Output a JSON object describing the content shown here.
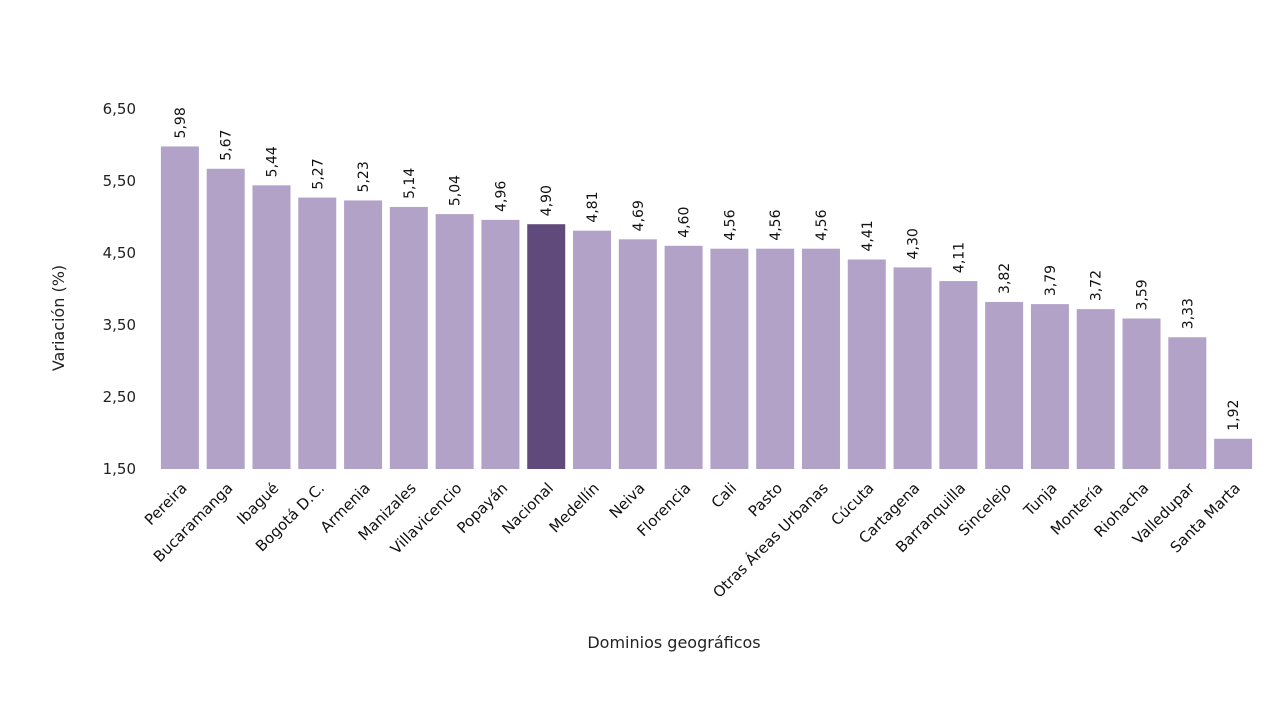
{
  "chart_data": {
    "type": "bar",
    "title": "",
    "xlabel": "Dominios geográficos",
    "ylabel": "Variación (%)",
    "ylim": [
      1.5,
      6.5
    ],
    "yticks": [
      "1,50",
      "2,50",
      "3,50",
      "4,50",
      "5,50",
      "6,50"
    ],
    "ytick_values": [
      1.5,
      2.5,
      3.5,
      4.5,
      5.5,
      6.5
    ],
    "grid": false,
    "categories": [
      "Pereira",
      "Bucaramanga",
      "Ibagué",
      "Bogotá D.C.",
      "Armenia",
      "Manizales",
      "Villavicencio",
      "Popayán",
      "Nacional",
      "Medellín",
      "Neiva",
      "Florencia",
      "Cali",
      "Pasto",
      "Otras Áreas Urbanas",
      "Cúcuta",
      "Cartagena",
      "Barranquilla",
      "Sincelejo",
      "Tunja",
      "Montería",
      "Riohacha",
      "Valledupar",
      "Santa Marta"
    ],
    "values": [
      5.98,
      5.67,
      5.44,
      5.27,
      5.23,
      5.14,
      5.04,
      4.96,
      4.9,
      4.81,
      4.69,
      4.6,
      4.56,
      4.56,
      4.56,
      4.41,
      4.3,
      4.11,
      3.82,
      3.79,
      3.72,
      3.59,
      3.33,
      1.92
    ],
    "value_labels": [
      "5,98",
      "5,67",
      "5,44",
      "5,27",
      "5,23",
      "5,14",
      "5,04",
      "4,96",
      "4,90",
      "4,81",
      "4,69",
      "4,60",
      "4,56",
      "4,56",
      "4,56",
      "4,41",
      "4,30",
      "4,11",
      "3,82",
      "3,79",
      "3,72",
      "3,59",
      "3,33",
      "1,92"
    ],
    "highlight_category": "Nacional",
    "colors": {
      "bar": "#b3a2c8",
      "highlight": "#5f4a7b"
    }
  }
}
